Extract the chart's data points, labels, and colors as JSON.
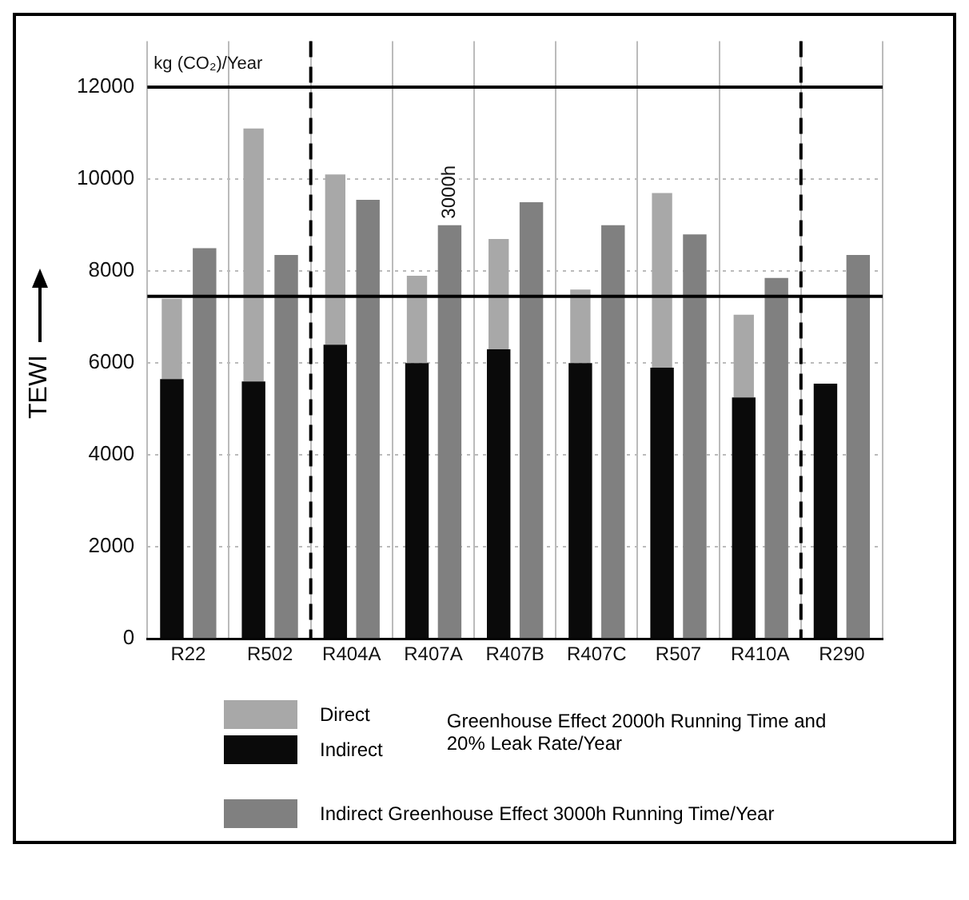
{
  "chart_data": {
    "type": "bar",
    "ylabel": "TEWI",
    "legend_title": "Greenhouse Effect 2000h Running Time and 20% Leak Rate/Year",
    "categories": [
      "R22",
      "R502",
      "R404A",
      "R407A",
      "R407B",
      "R407C",
      "R507",
      "R410A",
      "R290"
    ],
    "series": [
      {
        "name": "Indirect",
        "color": "#0a0a0a",
        "values": [
          5650,
          5600,
          6400,
          6000,
          6300,
          6000,
          5900,
          5250,
          5550
        ]
      },
      {
        "name": "Direct",
        "color": "#a8a8a8",
        "base": [
          5650,
          5600,
          6400,
          6000,
          6300,
          6000,
          5900,
          5250,
          null
        ],
        "values": [
          1750,
          5500,
          3700,
          1900,
          2400,
          1600,
          3800,
          1800,
          null
        ]
      },
      {
        "name": "Indirect Greenhouse Effect 3000h Running Time/Year",
        "color": "#808080",
        "values": [
          8500,
          8350,
          9550,
          9000,
          9500,
          9000,
          8800,
          7850,
          8350
        ]
      }
    ],
    "ylim": [
      0,
      13000
    ],
    "yticks": [
      0,
      2000,
      4000,
      6000,
      8000,
      10000,
      12000
    ],
    "ref_lines": [
      {
        "axis": "y",
        "value": 12000,
        "color": "#000000",
        "line_style": "solid"
      },
      {
        "axis": "y",
        "value": 7450,
        "color": "#000000",
        "line_style": "solid"
      }
    ],
    "annotations": [
      "kg (CO₂)/Year",
      {
        "text": "3000h",
        "x": "R407A",
        "y": 9000
      }
    ],
    "grid": true,
    "legend": "bottom",
    "tick_labels": "xy"
  }
}
